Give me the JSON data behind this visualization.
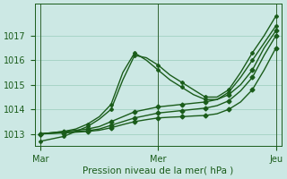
{
  "background_color": "#cce8e4",
  "grid_color": "#99ccbb",
  "line_color": "#1a5c1a",
  "ylim": [
    1012.5,
    1018.3
  ],
  "yticks": [
    1013,
    1014,
    1015,
    1016,
    1017
  ],
  "xtick_labels": [
    "Mar",
    "Mer",
    "Jeu"
  ],
  "xlabel": "Pression niveau de la mer( hPa )",
  "xlabel_fontsize": 7.5,
  "tick_fontsize": 7,
  "series": [
    {
      "x": [
        0,
        1,
        2,
        3,
        4,
        5,
        6,
        7,
        8,
        9,
        10,
        11,
        12,
        13,
        14,
        15,
        16,
        17,
        18,
        19,
        20
      ],
      "y": [
        1012.7,
        1012.8,
        1012.9,
        1013.1,
        1013.3,
        1013.6,
        1014.0,
        1015.2,
        1016.2,
        1016.1,
        1015.8,
        1015.4,
        1015.1,
        1014.8,
        1014.5,
        1014.5,
        1014.8,
        1015.5,
        1016.3,
        1017.0,
        1017.8
      ],
      "marker": "P",
      "markersize": 2.5,
      "linewidth": 1.0
    },
    {
      "x": [
        0,
        1,
        2,
        3,
        4,
        5,
        6,
        7,
        8,
        9,
        10,
        11,
        12,
        13,
        14,
        15,
        16,
        17,
        18,
        19,
        20
      ],
      "y": [
        1013.0,
        1013.05,
        1013.1,
        1013.2,
        1013.4,
        1013.7,
        1014.2,
        1015.5,
        1016.3,
        1016.0,
        1015.6,
        1015.2,
        1014.9,
        1014.6,
        1014.4,
        1014.4,
        1014.7,
        1015.3,
        1016.0,
        1016.7,
        1017.4
      ],
      "marker": "P",
      "markersize": 2.5,
      "linewidth": 1.0
    },
    {
      "x": [
        0,
        1,
        2,
        3,
        4,
        5,
        6,
        7,
        8,
        9,
        10,
        11,
        12,
        13,
        14,
        15,
        16,
        17,
        18,
        19,
        20
      ],
      "y": [
        1013.0,
        1013.05,
        1013.1,
        1013.15,
        1013.2,
        1013.3,
        1013.5,
        1013.7,
        1013.9,
        1014.0,
        1014.1,
        1014.15,
        1014.2,
        1014.25,
        1014.3,
        1014.4,
        1014.6,
        1015.0,
        1015.6,
        1016.5,
        1017.2
      ],
      "marker": "D",
      "markersize": 2.5,
      "linewidth": 1.0
    },
    {
      "x": [
        0,
        1,
        2,
        3,
        4,
        5,
        6,
        7,
        8,
        9,
        10,
        11,
        12,
        13,
        14,
        15,
        16,
        17,
        18,
        19,
        20
      ],
      "y": [
        1013.0,
        1013.03,
        1013.06,
        1013.1,
        1013.13,
        1013.2,
        1013.35,
        1013.5,
        1013.65,
        1013.75,
        1013.85,
        1013.9,
        1013.95,
        1014.0,
        1014.05,
        1014.15,
        1014.35,
        1014.75,
        1015.3,
        1016.2,
        1017.0
      ],
      "marker": "D",
      "markersize": 2.5,
      "linewidth": 1.0
    },
    {
      "x": [
        0,
        1,
        2,
        3,
        4,
        5,
        6,
        7,
        8,
        9,
        10,
        11,
        12,
        13,
        14,
        15,
        16,
        17,
        18,
        19,
        20
      ],
      "y": [
        1013.0,
        1013.02,
        1013.04,
        1013.07,
        1013.1,
        1013.15,
        1013.25,
        1013.38,
        1013.5,
        1013.58,
        1013.65,
        1013.68,
        1013.7,
        1013.73,
        1013.75,
        1013.82,
        1014.0,
        1014.3,
        1014.8,
        1015.6,
        1016.5
      ],
      "marker": "D",
      "markersize": 2.5,
      "linewidth": 1.0
    }
  ],
  "vline_x": [
    0,
    10,
    20
  ],
  "vline_color": "#336633",
  "vline_lw": 0.7
}
